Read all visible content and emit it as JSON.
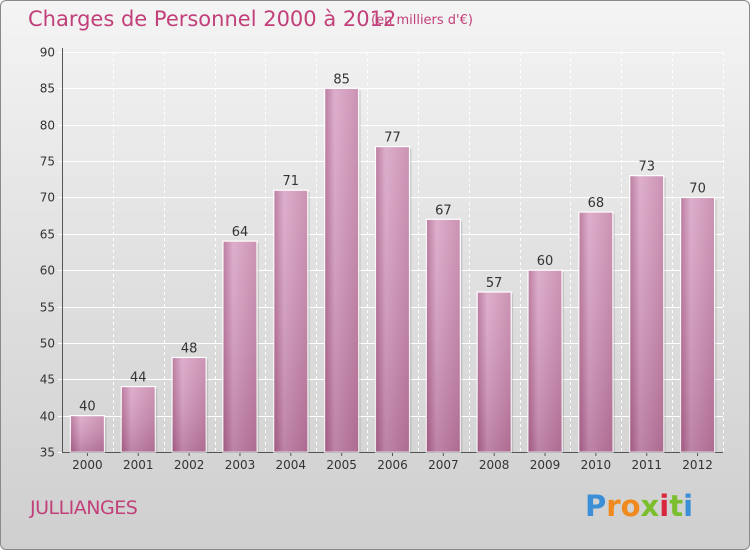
{
  "title": "Charges de Personnel 2000 à 2012",
  "subtitle": "(en milliers d'€)",
  "commune": "JULLIANGES",
  "logo": "Proxiti",
  "colors": {
    "bar": "#c37da2",
    "title": "#c2407a"
  },
  "chart_data": {
    "type": "bar",
    "title": "Charges de Personnel 2000 à 2012",
    "subtitle": "(en milliers d'€)",
    "categories": [
      "2000",
      "2001",
      "2002",
      "2003",
      "2004",
      "2005",
      "2006",
      "2007",
      "2008",
      "2009",
      "2010",
      "2011",
      "2012"
    ],
    "values": [
      40,
      44,
      48,
      64,
      71,
      85,
      77,
      67,
      57,
      60,
      68,
      73,
      70
    ],
    "ylim": [
      35,
      90
    ],
    "yticks": [
      35,
      40,
      45,
      50,
      55,
      60,
      65,
      70,
      75,
      80,
      85,
      90
    ],
    "grid": true,
    "data_labels": true
  }
}
